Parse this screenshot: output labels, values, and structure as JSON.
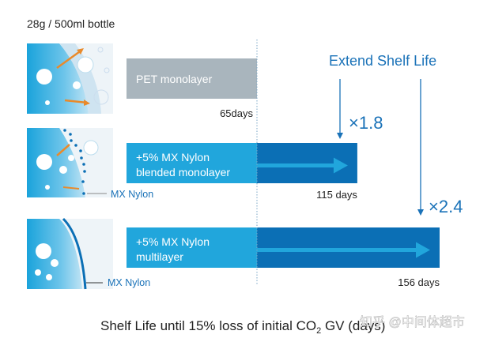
{
  "chart_data": {
    "type": "bar",
    "orientation": "horizontal",
    "subtitle": "28g / 500ml bottle",
    "xlabel_parts": {
      "pre": "Shelf Life until 15% loss of initial CO",
      "sub": "2",
      "post": " GV (days)"
    },
    "categories": [
      {
        "lines": [
          "PET monolayer"
        ]
      },
      {
        "lines": [
          "+5% MX Nylon",
          "blended monolayer"
        ]
      },
      {
        "lines": [
          "+5% MX Nylon",
          "multilayer"
        ]
      }
    ],
    "values": [
      65,
      115,
      156
    ],
    "value_labels": [
      "65days",
      "115 days",
      "156 days"
    ],
    "baseline_value": 65,
    "annotation_title": "Extend Shelf Life",
    "multipliers": [
      "×1.8",
      "×2.4"
    ],
    "layer_labels": [
      "MX Nylon",
      "MX Nylon"
    ],
    "co2_label": "CO₂",
    "colors": {
      "pet": "#a9b5bd",
      "light_blue": "#21a6dc",
      "dark_blue": "#0b6fb5",
      "text_blue": "#1a72b8",
      "arrow": "#e98a2b",
      "text": "#222222"
    }
  },
  "watermark": "知乎 @中间体超市"
}
